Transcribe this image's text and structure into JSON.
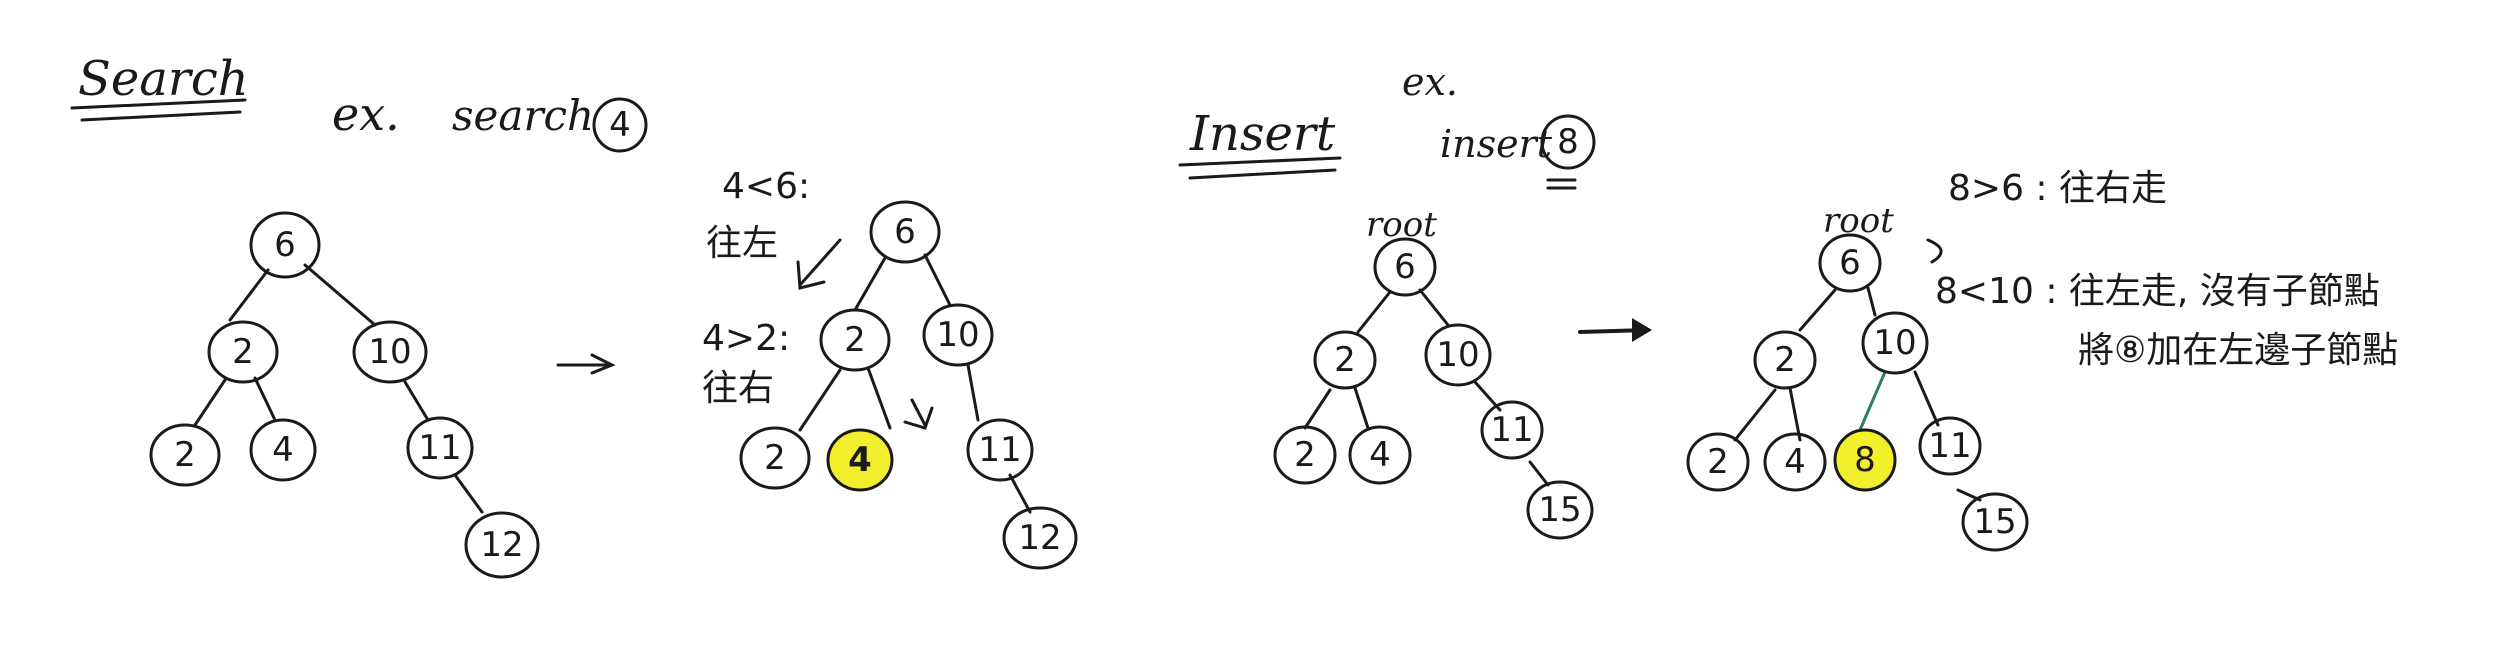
{
  "search": {
    "heading": "Search",
    "example_prefix": "ex.",
    "example_call": "search",
    "example_arg": "4",
    "note1_line1": "4<6:",
    "note1_line2": "往左",
    "note2_line1": "4>2:",
    "note2_line2": "往右"
  },
  "insert": {
    "heading": "Insert",
    "example_prefix": "ex.",
    "example_call": "insert",
    "example_arg": "8",
    "root_label": "root",
    "note_line1": "8>6 : 往右走",
    "note_line2": "8<10 : 往左走, 沒有子節點",
    "note_line3": "將⑧加在左邊子節點"
  },
  "trees": {
    "search_before": [
      "6",
      "2",
      "10",
      "2",
      "4",
      "11",
      "12"
    ],
    "search_after": [
      "6",
      "2",
      "10",
      "2",
      "4",
      "11",
      "12"
    ],
    "insert_before": [
      "6",
      "2",
      "10",
      "2",
      "4",
      "11",
      "15"
    ],
    "insert_after": [
      "6",
      "2",
      "10",
      "2",
      "4",
      "8",
      "11",
      "15"
    ]
  },
  "colors": {
    "highlight": "#f2ef2c",
    "ink": "#1a1a1a"
  }
}
